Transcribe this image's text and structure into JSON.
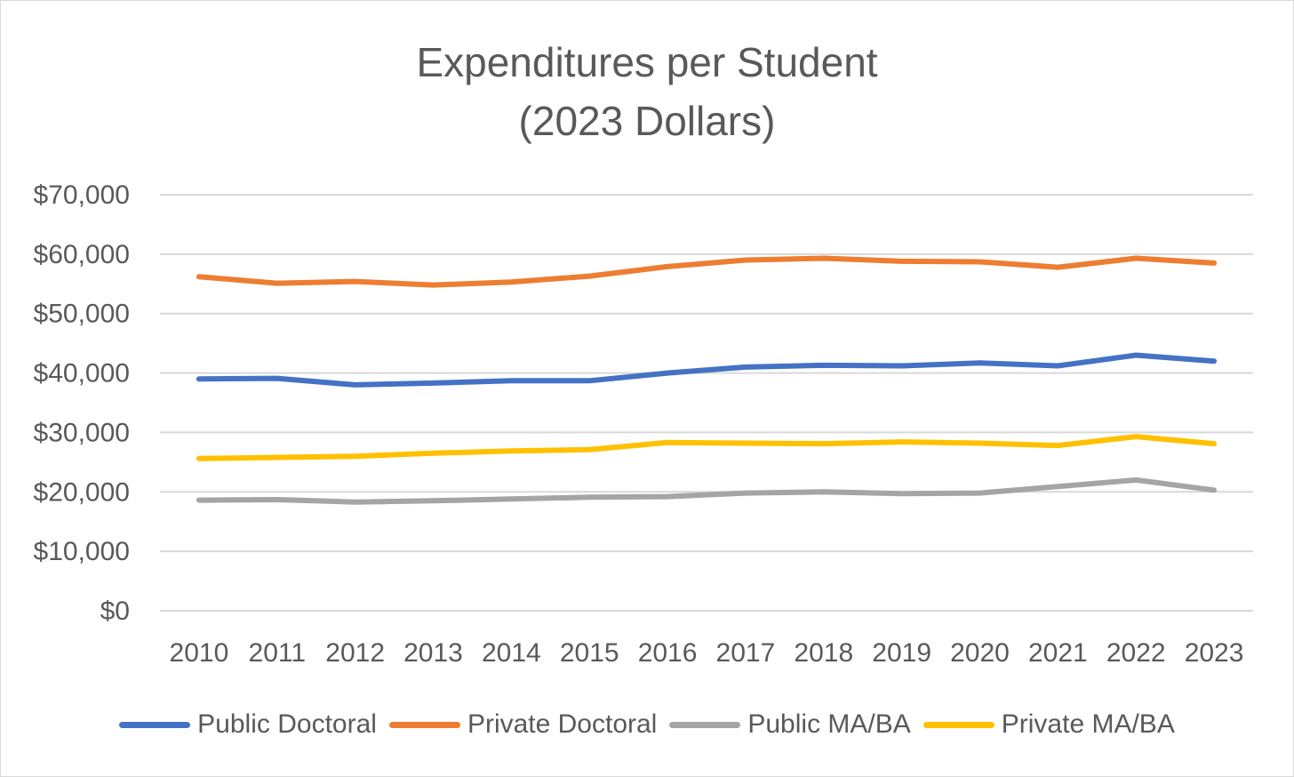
{
  "chart_data": {
    "type": "line",
    "title": "Expenditures per Student",
    "subtitle": "(2023 Dollars)",
    "xlabel": "",
    "ylabel": "",
    "categories": [
      "2010",
      "2011",
      "2012",
      "2013",
      "2014",
      "2015",
      "2016",
      "2017",
      "2018",
      "2019",
      "2020",
      "2021",
      "2022",
      "2023"
    ],
    "ylim": [
      0,
      70000
    ],
    "yticks": [
      0,
      10000,
      20000,
      30000,
      40000,
      50000,
      60000,
      70000
    ],
    "ytick_labels": [
      "$0",
      "$10,000",
      "$20,000",
      "$30,000",
      "$40,000",
      "$50,000",
      "$60,000",
      "$70,000"
    ],
    "grid": true,
    "legend_position": "bottom",
    "series": [
      {
        "name": "Public Doctoral",
        "color": "#4472C4",
        "values": [
          39000,
          39100,
          38000,
          38300,
          38700,
          38700,
          40000,
          41000,
          41300,
          41200,
          41700,
          41200,
          43000,
          42000
        ]
      },
      {
        "name": "Private Doctoral",
        "color": "#ED7D31",
        "values": [
          56200,
          55100,
          55400,
          54800,
          55300,
          56300,
          57900,
          59000,
          59300,
          58800,
          58700,
          57800,
          59300,
          58500
        ]
      },
      {
        "name": "Public MA/BA",
        "color": "#A5A5A5",
        "values": [
          18600,
          18700,
          18300,
          18500,
          18800,
          19100,
          19200,
          19800,
          20000,
          19700,
          19800,
          20900,
          22000,
          20300
        ]
      },
      {
        "name": "Private MA/BA",
        "color": "#FFC000",
        "values": [
          25600,
          25800,
          26000,
          26500,
          26900,
          27100,
          28300,
          28200,
          28100,
          28400,
          28200,
          27800,
          29300,
          28100
        ]
      }
    ]
  }
}
